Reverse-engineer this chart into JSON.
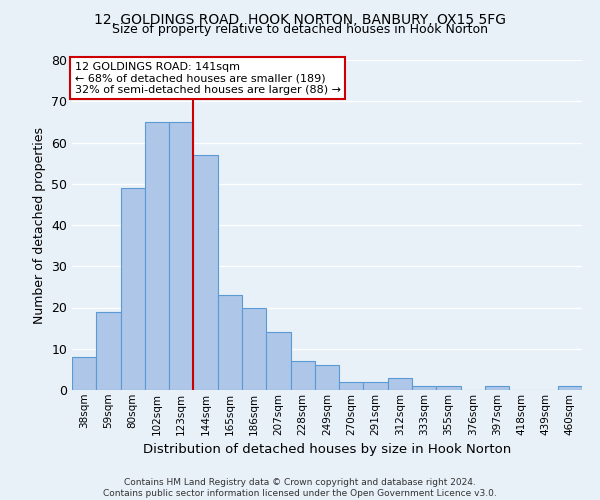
{
  "title1": "12, GOLDINGS ROAD, HOOK NORTON, BANBURY, OX15 5FG",
  "title2": "Size of property relative to detached houses in Hook Norton",
  "xlabel": "Distribution of detached houses by size in Hook Norton",
  "ylabel": "Number of detached properties",
  "categories": [
    "38sqm",
    "59sqm",
    "80sqm",
    "102sqm",
    "123sqm",
    "144sqm",
    "165sqm",
    "186sqm",
    "207sqm",
    "228sqm",
    "249sqm",
    "270sqm",
    "291sqm",
    "312sqm",
    "333sqm",
    "355sqm",
    "376sqm",
    "397sqm",
    "418sqm",
    "439sqm",
    "460sqm"
  ],
  "values": [
    8,
    19,
    49,
    65,
    65,
    57,
    23,
    20,
    14,
    7,
    6,
    2,
    2,
    3,
    1,
    1,
    0,
    1,
    0,
    0,
    1
  ],
  "bar_color": "#aec6e8",
  "bar_edge_color": "#5b9bd5",
  "vline_x": 4.5,
  "vline_color": "#cc0000",
  "ylim": [
    0,
    80
  ],
  "yticks": [
    0,
    10,
    20,
    30,
    40,
    50,
    60,
    70,
    80
  ],
  "annotation_text": "12 GOLDINGS ROAD: 141sqm\n← 68% of detached houses are smaller (189)\n32% of semi-detached houses are larger (88) →",
  "annotation_box_color": "#ffffff",
  "annotation_box_edge": "#cc0000",
  "footer": "Contains HM Land Registry data © Crown copyright and database right 2024.\nContains public sector information licensed under the Open Government Licence v3.0.",
  "bg_color": "#e8f0f8",
  "grid_color": "#ffffff"
}
